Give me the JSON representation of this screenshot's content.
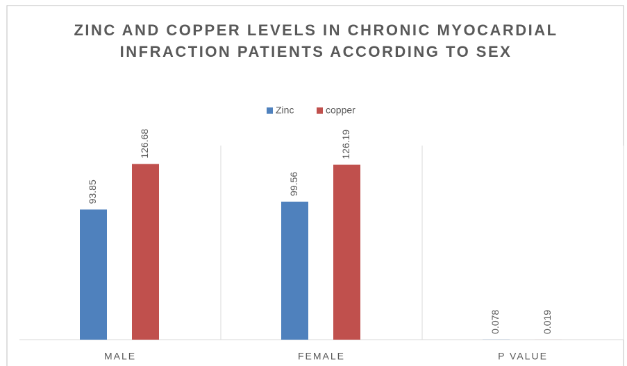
{
  "chart_data": {
    "type": "bar",
    "title": "ZINC AND COPPER LEVELS IN CHRONIC MYOCARDIAL INFRACTION  PATIENTS ACCORDING TO SEX",
    "categories": [
      "MALE",
      "FEMALE",
      "P VALUE"
    ],
    "series": [
      {
        "name": "Zinc",
        "color": "#4f81bd",
        "values": [
          93.85,
          99.56,
          0.078
        ]
      },
      {
        "name": "copper",
        "color": "#c0504d",
        "values": [
          126.68,
          126.19,
          0.019
        ]
      }
    ],
    "ylim": [
      0,
      140
    ],
    "legend": "top",
    "grid": false
  }
}
